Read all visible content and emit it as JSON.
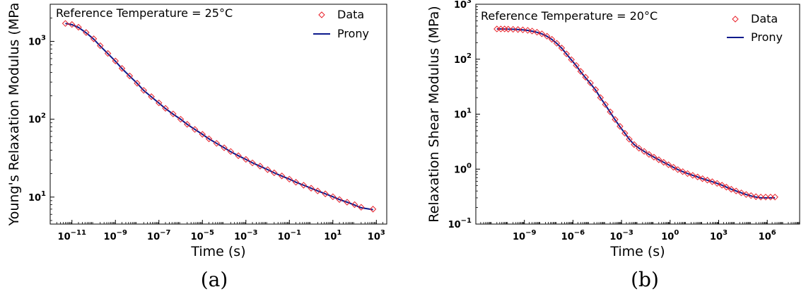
{
  "chart_data": [
    {
      "type": "scatter",
      "subfigure_label": "(a)",
      "annotation": "Reference Temperature = 25°C",
      "xlabel": "Time (s)",
      "ylabel": "Young's Relaxation Modulus (MPa",
      "xscale": "log",
      "yscale": "log",
      "xlim": [
        1e-12,
        3000.0
      ],
      "ylim": [
        4.5,
        3000
      ],
      "xticks": [
        {
          "value": 1e-11,
          "base": "10",
          "exp": "−11"
        },
        {
          "value": 1e-09,
          "base": "10",
          "exp": "−9"
        },
        {
          "value": 1e-07,
          "base": "10",
          "exp": "−7"
        },
        {
          "value": 1e-05,
          "base": "10",
          "exp": "−5"
        },
        {
          "value": 0.001,
          "base": "10",
          "exp": "−3"
        },
        {
          "value": 0.1,
          "base": "10",
          "exp": "−1"
        },
        {
          "value": 10.0,
          "base": "10",
          "exp": "1"
        },
        {
          "value": 1000.0,
          "base": "10",
          "exp": "3"
        }
      ],
      "yticks": [
        {
          "value": 10,
          "base": "10",
          "exp": "1"
        },
        {
          "value": 100,
          "base": "10",
          "exp": "2"
        },
        {
          "value": 1000,
          "base": "10",
          "exp": "3"
        }
      ],
      "legend": {
        "position": "top-right",
        "entries": [
          {
            "label": "Data",
            "color": "#e8212a",
            "marker": "diamond"
          },
          {
            "label": "Prony",
            "color": "#0c1a8c",
            "marker": "line"
          }
        ]
      },
      "series": [
        {
          "name": "Data",
          "color": "#e8212a",
          "x": [
            5e-12,
            1e-11,
            2e-11,
            4.5e-11,
            1e-10,
            2e-10,
            4.5e-10,
            1e-09,
            2e-09,
            4.5e-09,
            1e-08,
            2e-08,
            4.5e-08,
            1e-07,
            2e-07,
            4.5e-07,
            1e-06,
            2e-06,
            4.5e-06,
            1e-05,
            2e-05,
            4.5e-05,
            0.0001,
            0.0002,
            0.00045,
            0.001,
            0.002,
            0.0045,
            0.01,
            0.02,
            0.045,
            0.1,
            0.2,
            0.45,
            1,
            2,
            4.5,
            10,
            20,
            45,
            100,
            200,
            700
          ],
          "y": [
            1700,
            1650,
            1520,
            1300,
            1080,
            880,
            700,
            560,
            450,
            360,
            290,
            235,
            195,
            162,
            138,
            117,
            100,
            86,
            74,
            64,
            56,
            49,
            43,
            38.5,
            34,
            30.5,
            27.5,
            25,
            22.5,
            20.5,
            18.7,
            17,
            15.5,
            14.2,
            13,
            12,
            11,
            10.1,
            9.3,
            8.6,
            8,
            7.4,
            7
          ]
        },
        {
          "name": "Prony",
          "color": "#0c1a8c",
          "x": [
            5e-12,
            1e-11,
            2e-11,
            4.5e-11,
            1e-10,
            2e-10,
            4.5e-10,
            1e-09,
            2e-09,
            4.5e-09,
            1e-08,
            2e-08,
            4.5e-08,
            1e-07,
            2e-07,
            4.5e-07,
            1e-06,
            2e-06,
            4.5e-06,
            1e-05,
            2e-05,
            4.5e-05,
            0.0001,
            0.0002,
            0.00045,
            0.001,
            0.002,
            0.0045,
            0.01,
            0.02,
            0.045,
            0.1,
            0.2,
            0.45,
            1,
            2,
            4.5,
            10,
            20,
            45,
            100,
            200,
            700
          ],
          "y": [
            1700,
            1640,
            1510,
            1290,
            1070,
            870,
            695,
            555,
            448,
            358,
            289,
            234,
            194,
            161,
            137,
            116,
            100,
            86,
            74,
            64,
            56,
            49,
            43,
            38.3,
            34,
            30.5,
            27.5,
            24.9,
            22.5,
            20.5,
            18.6,
            17,
            15.5,
            14.2,
            13,
            12,
            11,
            10.1,
            9.3,
            8.6,
            7.9,
            7.3,
            6.9
          ]
        }
      ]
    },
    {
      "type": "scatter",
      "subfigure_label": "(b)",
      "annotation": "Reference Temperature = 20°C",
      "xlabel": "Time (s)",
      "ylabel": "Relaxation Shear Modulus (MPa)",
      "xscale": "log",
      "yscale": "log",
      "xlim": [
        1e-12,
        100000000.0
      ],
      "ylim": [
        0.1,
        1000
      ],
      "xticks": [
        {
          "value": 1e-09,
          "base": "10",
          "exp": "−9"
        },
        {
          "value": 1e-06,
          "base": "10",
          "exp": "−6"
        },
        {
          "value": 0.001,
          "base": "10",
          "exp": "−3"
        },
        {
          "value": 1,
          "base": "10",
          "exp": "0"
        },
        {
          "value": 1000.0,
          "base": "10",
          "exp": "3"
        },
        {
          "value": 1000000.0,
          "base": "10",
          "exp": "6"
        }
      ],
      "yticks": [
        {
          "value": 0.1,
          "base": "10",
          "exp": "−1"
        },
        {
          "value": 1,
          "base": "10",
          "exp": "0"
        },
        {
          "value": 10,
          "base": "10",
          "exp": "1"
        },
        {
          "value": 100,
          "base": "10",
          "exp": "2"
        },
        {
          "value": 1000,
          "base": "10",
          "exp": "3"
        }
      ],
      "legend": {
        "position": "top-right",
        "entries": [
          {
            "label": "Data",
            "color": "#e8212a",
            "marker": "diamond"
          },
          {
            "label": "Prony",
            "color": "#0c1a8c",
            "marker": "line"
          }
        ]
      },
      "series": [
        {
          "name": "Data",
          "color": "#e8212a",
          "x": [
            2e-11,
            3.5e-11,
            6e-11,
            1e-10,
            2e-10,
            4e-10,
            8e-10,
            1.6e-09,
            3e-09,
            6e-09,
            1.2e-08,
            2.5e-08,
            5e-08,
            1e-07,
            2e-07,
            4e-07,
            8e-07,
            1.6e-06,
            3e-06,
            6e-06,
            1.2e-05,
            2.5e-05,
            5e-05,
            0.0001,
            0.0002,
            0.0004,
            0.0008,
            0.0016,
            0.003,
            0.006,
            0.012,
            0.025,
            0.05,
            0.1,
            0.2,
            0.4,
            0.8,
            1.6,
            3,
            6,
            12,
            25,
            50,
            100,
            200,
            400,
            800,
            1600,
            3000,
            6000,
            12000.0,
            25000.0,
            50000.0,
            100000.0,
            200000.0,
            400000.0,
            800000.0,
            1600000.0,
            3000000.0
          ],
          "y": [
            355,
            355,
            355,
            352,
            350,
            347,
            342,
            335,
            325,
            310,
            290,
            262,
            230,
            195,
            160,
            125,
            98,
            77,
            60,
            47,
            37,
            28,
            20,
            15,
            11,
            8,
            6,
            4.5,
            3.5,
            2.8,
            2.4,
            2.1,
            1.85,
            1.65,
            1.48,
            1.33,
            1.2,
            1.08,
            0.98,
            0.9,
            0.83,
            0.77,
            0.72,
            0.67,
            0.63,
            0.59,
            0.55,
            0.51,
            0.47,
            0.43,
            0.4,
            0.37,
            0.345,
            0.33,
            0.315,
            0.31,
            0.31,
            0.31,
            0.31
          ]
        },
        {
          "name": "Prony",
          "color": "#0c1a8c",
          "x": [
            2e-11,
            3.5e-11,
            6e-11,
            1e-10,
            2e-10,
            4e-10,
            8e-10,
            1.6e-09,
            3e-09,
            6e-09,
            1.2e-08,
            2.5e-08,
            5e-08,
            1e-07,
            2e-07,
            4e-07,
            8e-07,
            1.6e-06,
            3e-06,
            6e-06,
            1.2e-05,
            2.5e-05,
            5e-05,
            0.0001,
            0.0002,
            0.0004,
            0.0008,
            0.0016,
            0.003,
            0.006,
            0.012,
            0.025,
            0.05,
            0.1,
            0.2,
            0.4,
            0.8,
            1.6,
            3,
            6,
            12,
            25,
            50,
            100,
            200,
            400,
            800,
            1600,
            3000,
            6000,
            12000.0,
            25000.0,
            50000.0,
            100000.0,
            200000.0,
            400000.0,
            800000.0,
            1600000.0,
            3000000.0
          ],
          "y": [
            355,
            355,
            354,
            352,
            350,
            346,
            341,
            334,
            324,
            309,
            289,
            261,
            229,
            194,
            159,
            124,
            97,
            76,
            59,
            46,
            36,
            27.5,
            19.8,
            14.8,
            10.8,
            7.9,
            5.9,
            4.5,
            3.5,
            2.8,
            2.4,
            2.1,
            1.85,
            1.65,
            1.48,
            1.33,
            1.2,
            1.08,
            0.98,
            0.9,
            0.83,
            0.77,
            0.72,
            0.67,
            0.63,
            0.59,
            0.55,
            0.51,
            0.47,
            0.43,
            0.4,
            0.37,
            0.345,
            0.325,
            0.31,
            0.3,
            0.3,
            0.3,
            0.3
          ]
        }
      ]
    }
  ]
}
